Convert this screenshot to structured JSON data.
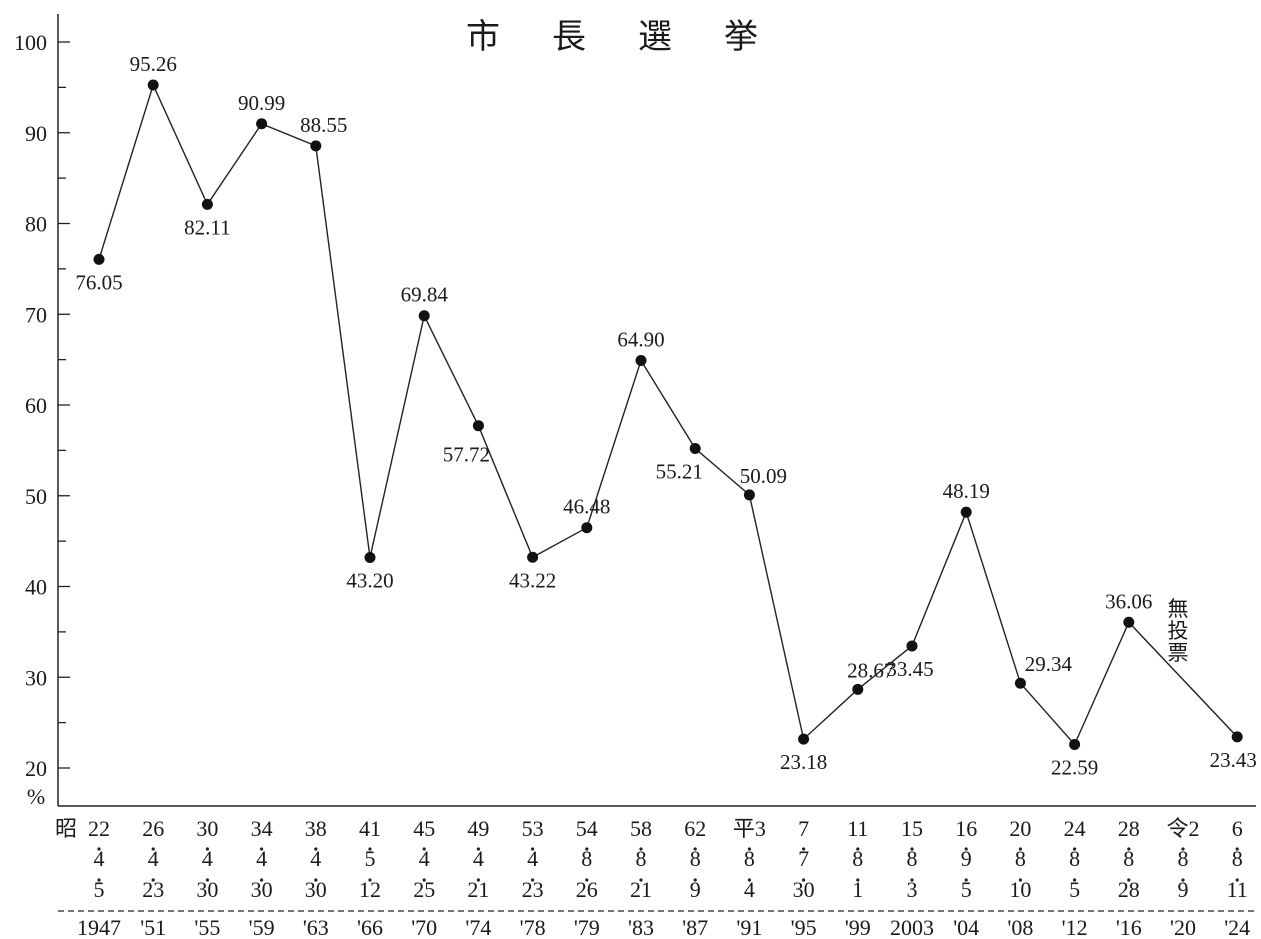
{
  "chart_data": {
    "type": "line",
    "title": "市長選挙",
    "ylabel": "%",
    "ylim": [
      20,
      100
    ],
    "yticks": [
      20,
      30,
      40,
      50,
      60,
      70,
      80,
      90,
      100
    ],
    "grid": false,
    "legend": "none",
    "era_prefix": "昭",
    "gap_note": "無投票",
    "categories": [
      {
        "era": "22",
        "month": "4",
        "day": "5",
        "year": "1947"
      },
      {
        "era": "26",
        "month": "4",
        "day": "23",
        "year": "'51"
      },
      {
        "era": "30",
        "month": "4",
        "day": "30",
        "year": "'55"
      },
      {
        "era": "34",
        "month": "4",
        "day": "30",
        "year": "'59"
      },
      {
        "era": "38",
        "month": "4",
        "day": "30",
        "year": "'63"
      },
      {
        "era": "41",
        "month": "5",
        "day": "12",
        "year": "'66"
      },
      {
        "era": "45",
        "month": "4",
        "day": "25",
        "year": "'70"
      },
      {
        "era": "49",
        "month": "4",
        "day": "21",
        "year": "'74"
      },
      {
        "era": "53",
        "month": "4",
        "day": "23",
        "year": "'78"
      },
      {
        "era": "54",
        "month": "8",
        "day": "26",
        "year": "'79"
      },
      {
        "era": "58",
        "month": "8",
        "day": "21",
        "year": "'83"
      },
      {
        "era": "62",
        "month": "8",
        "day": "9",
        "year": "'87"
      },
      {
        "era": "平3",
        "month": "8",
        "day": "4",
        "year": "'91"
      },
      {
        "era": "7",
        "month": "7",
        "day": "30",
        "year": "'95"
      },
      {
        "era": "11",
        "month": "8",
        "day": "1",
        "year": "'99"
      },
      {
        "era": "15",
        "month": "8",
        "day": "3",
        "year": "2003"
      },
      {
        "era": "16",
        "month": "9",
        "day": "5",
        "year": "'04"
      },
      {
        "era": "20",
        "month": "8",
        "day": "10",
        "year": "'08"
      },
      {
        "era": "24",
        "month": "8",
        "day": "5",
        "year": "'12"
      },
      {
        "era": "28",
        "month": "8",
        "day": "28",
        "year": "'16"
      },
      {
        "era": "令2",
        "month": "8",
        "day": "9",
        "year": "'20"
      },
      {
        "era": "6",
        "month": "8",
        "day": "11",
        "year": "'24"
      }
    ],
    "values": [
      76.05,
      95.26,
      82.11,
      90.99,
      88.55,
      43.2,
      69.84,
      57.72,
      43.22,
      46.48,
      64.9,
      55.21,
      50.09,
      23.18,
      28.67,
      33.45,
      48.19,
      29.34,
      22.59,
      36.06,
      null,
      23.43
    ],
    "value_labels": [
      "76.05",
      "95.26",
      "82.11",
      "90.99",
      "88.55",
      "43.20",
      "69.84",
      "57.72",
      "43.22",
      "46.48",
      "64.90",
      "55.21",
      "50.09",
      "23.18",
      "28.67",
      "33.45",
      "48.19",
      "29.34",
      "22.59",
      "36.06",
      "",
      "23.43"
    ]
  }
}
